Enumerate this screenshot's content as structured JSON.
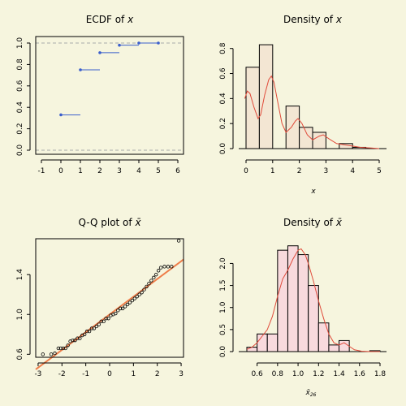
{
  "colors": {
    "background": "#F6F5DE",
    "ecdf": "#3B5FCC",
    "ecdf_ref": "#A8AAAA",
    "hist1_fill": "#F3E6D3",
    "hist2_fill": "#F8DADD",
    "density_line": "#E04A3A",
    "qq_line": "#EE7E4A"
  },
  "chart_data": [
    {
      "type": "step",
      "title_prefix": "ECDF of",
      "title_var": "x",
      "xlim": [
        -1,
        6
      ],
      "ylim": [
        0,
        1
      ],
      "x_ticks": [
        "-1",
        "0",
        "1",
        "2",
        "3",
        "4",
        "5",
        "6"
      ],
      "y_ticks": [
        "0.0",
        "0.2",
        "0.4",
        "0.6",
        "0.8",
        "1.0"
      ],
      "reference_lines": [
        0,
        1
      ],
      "steps": [
        {
          "x": 0,
          "y": 0.33
        },
        {
          "x": 1,
          "y": 0.75
        },
        {
          "x": 2,
          "y": 0.91
        },
        {
          "x": 3,
          "y": 0.98
        },
        {
          "x": 4,
          "y": 1.0
        },
        {
          "x": 5,
          "y": 1.0
        }
      ]
    },
    {
      "type": "histogram",
      "title_prefix": "Density of",
      "title_var": "x",
      "xlabel": "x",
      "xlim": [
        0,
        5
      ],
      "ylim": [
        0,
        0.85
      ],
      "x_ticks": [
        "0",
        "1",
        "2",
        "3",
        "4",
        "5"
      ],
      "y_ticks": [
        "0.0",
        "0.2",
        "0.4",
        "0.6",
        "0.8"
      ],
      "bins": [
        {
          "x0": 0,
          "x1": 0.5,
          "density": 0.65
        },
        {
          "x0": 0.5,
          "x1": 1,
          "density": 0.83
        },
        {
          "x0": 1,
          "x1": 1.5,
          "density": 0
        },
        {
          "x0": 1.5,
          "x1": 2,
          "density": 0.34
        },
        {
          "x0": 2,
          "x1": 2.5,
          "density": 0.17
        },
        {
          "x0": 2.5,
          "x1": 3,
          "density": 0.13
        },
        {
          "x0": 3,
          "x1": 3.5,
          "density": 0
        },
        {
          "x0": 3.5,
          "x1": 4,
          "density": 0.04
        },
        {
          "x0": 4,
          "x1": 4.5,
          "density": 0.01
        }
      ],
      "density_curve": [
        [
          -0.05,
          0.4
        ],
        [
          0.05,
          0.46
        ],
        [
          0.15,
          0.44
        ],
        [
          0.3,
          0.33
        ],
        [
          0.45,
          0.24
        ],
        [
          0.55,
          0.27
        ],
        [
          0.7,
          0.43
        ],
        [
          0.85,
          0.55
        ],
        [
          0.95,
          0.58
        ],
        [
          1.05,
          0.53
        ],
        [
          1.2,
          0.36
        ],
        [
          1.35,
          0.2
        ],
        [
          1.5,
          0.13
        ],
        [
          1.7,
          0.17
        ],
        [
          1.85,
          0.22
        ],
        [
          1.95,
          0.24
        ],
        [
          2.1,
          0.2
        ],
        [
          2.3,
          0.11
        ],
        [
          2.5,
          0.07
        ],
        [
          2.75,
          0.1
        ],
        [
          2.9,
          0.11
        ],
        [
          3.1,
          0.08
        ],
        [
          3.4,
          0.04
        ],
        [
          3.7,
          0.03
        ],
        [
          4.0,
          0.02
        ],
        [
          4.3,
          0.01
        ],
        [
          4.7,
          0.005
        ],
        [
          5.0,
          0.0
        ]
      ]
    },
    {
      "type": "scatter",
      "title_prefix": "Q-Q plot of",
      "title_var": "x̄",
      "xlim": [
        -3.1,
        3.1
      ],
      "ylim": [
        0.57,
        1.76
      ],
      "x_ticks": [
        "-3",
        "-2",
        "-1",
        "0",
        "1",
        "2",
        "3"
      ],
      "y_ticks": [
        "0.6",
        "1.0",
        "1.4"
      ],
      "y_tick_values": [
        0.6,
        1.0,
        1.4
      ],
      "line": {
        "intercept": 1.0,
        "slope": 0.178
      },
      "points": [
        [
          -2.8,
          0.6
        ],
        [
          -2.45,
          0.6
        ],
        [
          -2.3,
          0.61
        ],
        [
          -2.15,
          0.66
        ],
        [
          -2.05,
          0.66
        ],
        [
          -1.95,
          0.66
        ],
        [
          -1.85,
          0.66
        ],
        [
          -1.75,
          0.69
        ],
        [
          -1.65,
          0.73
        ],
        [
          -1.55,
          0.74
        ],
        [
          -1.45,
          0.74
        ],
        [
          -1.35,
          0.76
        ],
        [
          -1.25,
          0.76
        ],
        [
          -1.15,
          0.79
        ],
        [
          -1.05,
          0.8
        ],
        [
          -0.95,
          0.83
        ],
        [
          -0.85,
          0.83
        ],
        [
          -0.75,
          0.86
        ],
        [
          -0.65,
          0.86
        ],
        [
          -0.55,
          0.88
        ],
        [
          -0.45,
          0.9
        ],
        [
          -0.35,
          0.93
        ],
        [
          -0.25,
          0.93
        ],
        [
          -0.15,
          0.96
        ],
        [
          -0.05,
          0.96
        ],
        [
          0.05,
          0.99
        ],
        [
          0.15,
          1.0
        ],
        [
          0.25,
          1.01
        ],
        [
          0.35,
          1.04
        ],
        [
          0.45,
          1.06
        ],
        [
          0.55,
          1.06
        ],
        [
          0.65,
          1.08
        ],
        [
          0.75,
          1.1
        ],
        [
          0.85,
          1.12
        ],
        [
          0.95,
          1.14
        ],
        [
          1.05,
          1.16
        ],
        [
          1.15,
          1.18
        ],
        [
          1.25,
          1.2
        ],
        [
          1.35,
          1.22
        ],
        [
          1.45,
          1.25
        ],
        [
          1.55,
          1.28
        ],
        [
          1.65,
          1.31
        ],
        [
          1.75,
          1.34
        ],
        [
          1.85,
          1.37
        ],
        [
          1.95,
          1.4
        ],
        [
          2.05,
          1.44
        ],
        [
          2.15,
          1.47
        ],
        [
          2.3,
          1.48
        ],
        [
          2.45,
          1.48
        ],
        [
          2.6,
          1.48
        ],
        [
          2.9,
          1.74
        ]
      ]
    },
    {
      "type": "histogram",
      "title_prefix": "Density of",
      "title_var": "x̄",
      "xlabel_var": "x̄",
      "xlabel_sub": "26",
      "xlim": [
        0.5,
        1.8
      ],
      "ylim": [
        0,
        2.45
      ],
      "x_ticks": [
        "0.6",
        "0.8",
        "1.0",
        "1.2",
        "1.4",
        "1.6",
        "1.8"
      ],
      "x_tick_values": [
        0.6,
        0.8,
        1.0,
        1.2,
        1.4,
        1.6,
        1.8
      ],
      "y_ticks": [
        "0.0",
        "0.5",
        "1.0",
        "1.5",
        "2.0"
      ],
      "y_tick_values": [
        0,
        0.5,
        1.0,
        1.5,
        2.0
      ],
      "bins": [
        {
          "x0": 0.5,
          "x1": 0.6,
          "density": 0.1
        },
        {
          "x0": 0.6,
          "x1": 0.7,
          "density": 0.4
        },
        {
          "x0": 0.7,
          "x1": 0.8,
          "density": 0.4
        },
        {
          "x0": 0.8,
          "x1": 0.9,
          "density": 2.3
        },
        {
          "x0": 0.9,
          "x1": 1.0,
          "density": 2.4
        },
        {
          "x0": 1.0,
          "x1": 1.1,
          "density": 2.2
        },
        {
          "x0": 1.1,
          "x1": 1.2,
          "density": 1.5
        },
        {
          "x0": 1.2,
          "x1": 1.3,
          "density": 0.65
        },
        {
          "x0": 1.3,
          "x1": 1.4,
          "density": 0.15
        },
        {
          "x0": 1.4,
          "x1": 1.5,
          "density": 0.25
        },
        {
          "x0": 1.5,
          "x1": 1.6,
          "density": 0.0
        },
        {
          "x0": 1.6,
          "x1": 1.7,
          "density": 0.0
        },
        {
          "x0": 1.7,
          "x1": 1.8,
          "density": 0.02
        }
      ],
      "density_curve": [
        [
          0.5,
          0.05
        ],
        [
          0.55,
          0.1
        ],
        [
          0.6,
          0.2
        ],
        [
          0.65,
          0.35
        ],
        [
          0.7,
          0.5
        ],
        [
          0.75,
          0.8
        ],
        [
          0.8,
          1.25
        ],
        [
          0.85,
          1.65
        ],
        [
          0.9,
          1.85
        ],
        [
          0.95,
          2.1
        ],
        [
          1.0,
          2.3
        ],
        [
          1.03,
          2.33
        ],
        [
          1.07,
          2.2
        ],
        [
          1.1,
          2.0
        ],
        [
          1.15,
          1.6
        ],
        [
          1.2,
          1.15
        ],
        [
          1.25,
          0.75
        ],
        [
          1.3,
          0.4
        ],
        [
          1.35,
          0.2
        ],
        [
          1.4,
          0.15
        ],
        [
          1.45,
          0.2
        ],
        [
          1.5,
          0.12
        ],
        [
          1.55,
          0.04
        ],
        [
          1.62,
          0.01
        ],
        [
          1.7,
          0.0
        ],
        [
          1.8,
          0.0
        ]
      ]
    }
  ]
}
